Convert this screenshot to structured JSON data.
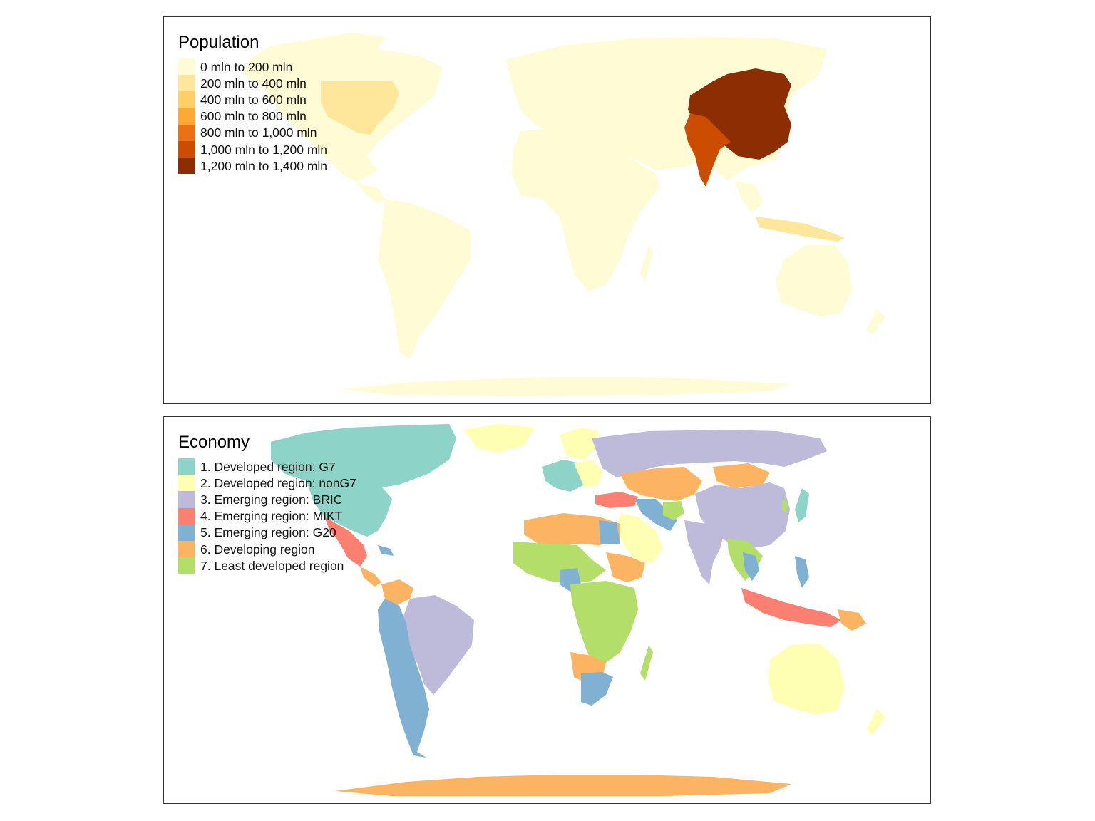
{
  "maps": [
    {
      "legend_title": "Population",
      "legend": [
        {
          "label": "0 mln to 200 mln",
          "color": "#FFFBD4"
        },
        {
          "label": "200 mln to 400 mln",
          "color": "#FEE79B"
        },
        {
          "label": "400 mln to 600 mln",
          "color": "#FECF66"
        },
        {
          "label": "600 mln to 800 mln",
          "color": "#FEA836"
        },
        {
          "label": "800 mln to 1,000 mln",
          "color": "#EC7014"
        },
        {
          "label": "1,000 mln to 1,200 mln",
          "color": "#CC4C02"
        },
        {
          "label": "1,200 mln to 1,400 mln",
          "color": "#8C2D04"
        }
      ],
      "highlights": {
        "China": "1,200 mln to 1,400 mln",
        "India": "1,000 mln to 1,200 mln",
        "United States": "200 mln to 400 mln",
        "Indonesia": "200 mln to 400 mln"
      }
    },
    {
      "legend_title": "Economy",
      "legend": [
        {
          "label": "1. Developed region: G7",
          "color": "#8DD3C7"
        },
        {
          "label": "2. Developed region: nonG7",
          "color": "#FFFFB3"
        },
        {
          "label": "3. Emerging region: BRIC",
          "color": "#BEBADA"
        },
        {
          "label": "4. Emerging region: MIKT",
          "color": "#FB8072"
        },
        {
          "label": "5. Emerging region: G20",
          "color": "#80B1D3"
        },
        {
          "label": "6. Developing region",
          "color": "#FDB462"
        },
        {
          "label": "7. Least developed region",
          "color": "#B3DE69"
        }
      ]
    }
  ]
}
